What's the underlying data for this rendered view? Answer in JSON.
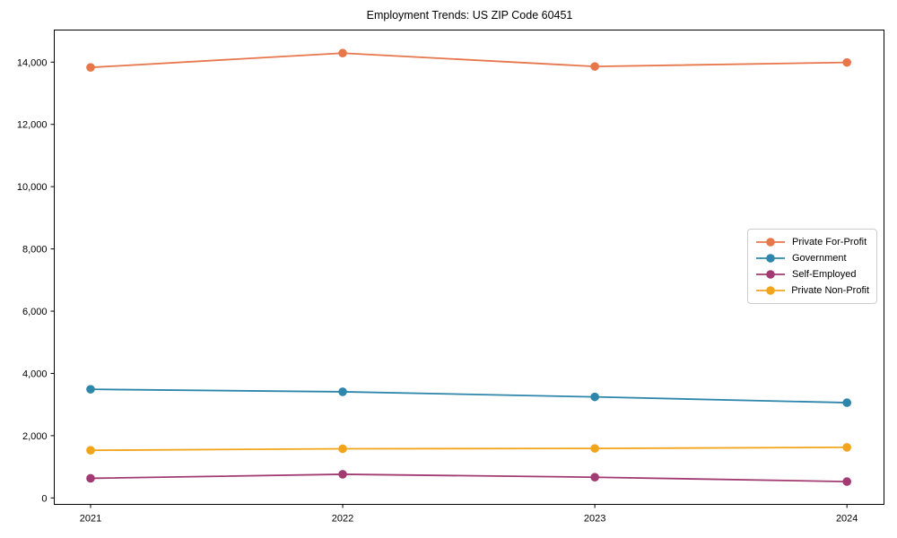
{
  "chart_data": {
    "type": "line",
    "title": "Employment Trends: US ZIP Code 60451",
    "x": [
      2021,
      2022,
      2023,
      2024
    ],
    "x_tick_labels": [
      "2021",
      "2022",
      "2023",
      "2024"
    ],
    "y_ticks": [
      0,
      2000,
      4000,
      6000,
      8000,
      10000,
      12000,
      14000
    ],
    "xlim": [
      2020.856,
      2024.147
    ],
    "ylim": [
      -207,
      15031
    ],
    "grid": false,
    "marker": "circle",
    "legend_position": "center-right",
    "series": [
      {
        "name": "Private For-Profit",
        "color": "#E8764B",
        "values": [
          13830,
          14290,
          13860,
          13990
        ]
      },
      {
        "name": "Government",
        "color": "#2E86AB",
        "values": [
          3490,
          3410,
          3245,
          3060
        ]
      },
      {
        "name": "Self-Employed",
        "color": "#A23B72",
        "values": [
          630,
          760,
          665,
          525
        ]
      },
      {
        "name": "Private Non-Profit",
        "color": "#F2A51B",
        "values": [
          1530,
          1580,
          1590,
          1625
        ]
      }
    ],
    "axis_color": "#000000",
    "tick_label_color": "#000000",
    "tick_font_size": 11,
    "plot_bg": "#ffffff"
  }
}
